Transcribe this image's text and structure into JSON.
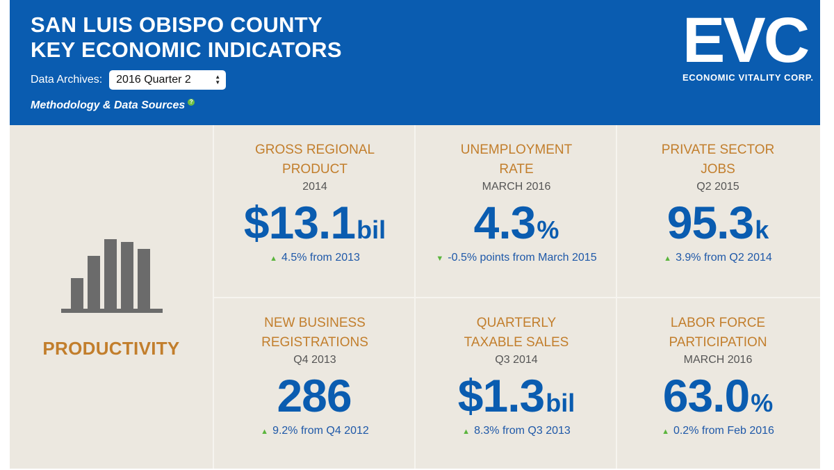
{
  "header": {
    "title_line1": "SAN LUIS OBISPO COUNTY",
    "title_line2": "KEY ECONOMIC INDICATORS",
    "archives_label": "Data Archives:",
    "archives_selected": "2016 Quarter 2",
    "methodology_label": "Methodology & Data Sources",
    "help_icon_glyph": "?"
  },
  "logo": {
    "mark": "EVC",
    "subtitle": "ECONOMIC VITALITY CORP."
  },
  "category": {
    "label": "PRODUCTIVITY",
    "icon": "bar-chart-icon"
  },
  "indicators": [
    {
      "title_line1": "GROSS REGIONAL",
      "title_line2": "PRODUCT",
      "period": "2014",
      "prefix": "$",
      "value": "13.1",
      "unit": "bil",
      "trend": "up",
      "change": "4.5% from 2013"
    },
    {
      "title_line1": "UNEMPLOYMENT",
      "title_line2": "RATE",
      "period": "MARCH 2016",
      "prefix": "",
      "value": "4.3",
      "unit": "%",
      "trend": "down",
      "change": "-0.5% points from March 2015"
    },
    {
      "title_line1": "PRIVATE SECTOR",
      "title_line2": "JOBS",
      "period": "Q2 2015",
      "prefix": "",
      "value": "95.3",
      "unit": "k",
      "trend": "up",
      "change": "3.9% from Q2 2014"
    },
    {
      "title_line1": "NEW BUSINESS",
      "title_line2": "REGISTRATIONS",
      "period": "Q4 2013",
      "prefix": "",
      "value": "286",
      "unit": "",
      "trend": "up",
      "change": "9.2% from Q4 2012"
    },
    {
      "title_line1": "QUARTERLY",
      "title_line2": "TAXABLE SALES",
      "period": "Q3 2014",
      "prefix": "$",
      "value": "1.3",
      "unit": "bil",
      "trend": "up",
      "change": "8.3% from Q3 2013"
    },
    {
      "title_line1": "LABOR FORCE",
      "title_line2": "PARTICIPATION",
      "period": "MARCH 2016",
      "prefix": "",
      "value": "63.0",
      "unit": "%",
      "trend": "up",
      "change": "0.2% from Feb 2016"
    }
  ],
  "colors": {
    "header_blue": "#0a5cb0",
    "accent_orange": "#c27e2c",
    "panel_beige": "#ece8e0",
    "trend_green": "#5bb53d"
  }
}
